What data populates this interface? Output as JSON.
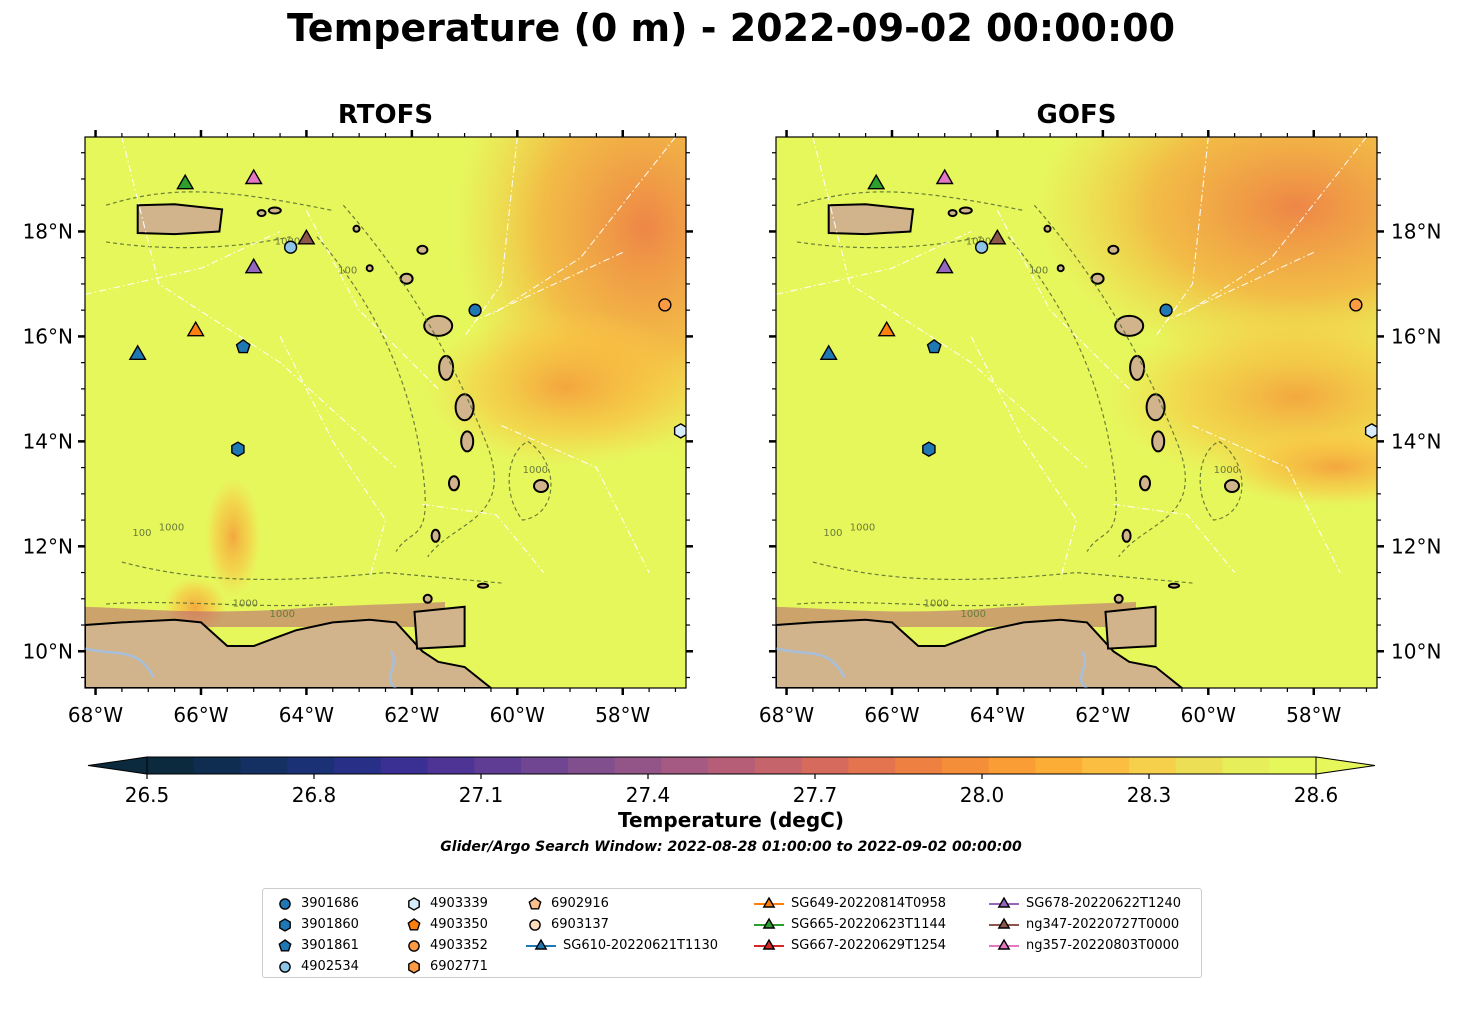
{
  "title": "Temperature (0 m) - 2022-09-02 00:00:00",
  "panels": [
    {
      "title": "RTOFS",
      "ylabel_side": "left"
    },
    {
      "title": "GOFS",
      "ylabel_side": "right"
    }
  ],
  "axes": {
    "x_ticks": [
      "68°W",
      "66°W",
      "64°W",
      "62°W",
      "60°W",
      "58°W"
    ],
    "x_tick_values": [
      -68,
      -66,
      -64,
      -62,
      -60,
      -58
    ],
    "y_ticks": [
      "10°N",
      "12°N",
      "14°N",
      "16°N",
      "18°N"
    ],
    "y_tick_values": [
      10,
      12,
      14,
      16,
      18
    ],
    "lon_range": [
      -68.2,
      -56.8
    ],
    "lat_range": [
      9.3,
      19.8
    ]
  },
  "colorbar": {
    "label": "Temperature (degC)",
    "ticks": [
      "26.5",
      "26.8",
      "27.1",
      "27.4",
      "27.7",
      "28.0",
      "28.3",
      "28.6"
    ],
    "tick_values": [
      26.5,
      26.8,
      27.1,
      27.4,
      27.7,
      28.0,
      28.3,
      28.6
    ],
    "range": [
      26.5,
      28.6
    ],
    "extend": "both",
    "colors": [
      "#0c2a3d",
      "#0f2d50",
      "#142f62",
      "#1b3175",
      "#282f86",
      "#3a2f92",
      "#4e3595",
      "#5f3d95",
      "#704692",
      "#814e8e",
      "#935488",
      "#a45a82",
      "#b65e78",
      "#c6646c",
      "#d66b5d",
      "#e3744f",
      "#ee8042",
      "#f58e39",
      "#f99d34",
      "#fbad36",
      "#fbbe40",
      "#f6d04b",
      "#ecdf55",
      "#e6ef5a",
      "#e6f75c"
    ]
  },
  "search_window": "Glider/Argo Search Window: 2022-08-28 01:00:00 to 2022-09-02 00:00:00",
  "colors": {
    "ocean_base": "#e6f75c",
    "land": "#d2b48c",
    "lake": "#a5bfdd"
  },
  "observations": [
    {
      "id": "3901686",
      "kind": "argo",
      "marker": "circle",
      "color": "#1f77b4",
      "lon": -60.8,
      "lat": 16.5
    },
    {
      "id": "3901860",
      "kind": "argo",
      "marker": "hexagon",
      "color": "#1f77b4",
      "lon": -65.3,
      "lat": 13.85
    },
    {
      "id": "3901861",
      "kind": "argo",
      "marker": "pentagon",
      "color": "#1f77b4",
      "lon": -65.2,
      "lat": 15.8
    },
    {
      "id": "4902534",
      "kind": "argo",
      "marker": "circle",
      "color": "#8ec4e8",
      "lon": -64.3,
      "lat": 17.7
    },
    {
      "id": "4903339",
      "kind": "argo",
      "marker": "hexagon",
      "color": "#d6ecfb",
      "lon": -56.9,
      "lat": 14.2
    },
    {
      "id": "4903350",
      "kind": "argo",
      "marker": "pentagon",
      "color": "#ff7f0e",
      "lon": null,
      "lat": null
    },
    {
      "id": "4903352",
      "kind": "argo",
      "marker": "circle",
      "color": "#fd9a44",
      "lon": -57.2,
      "lat": 16.6
    },
    {
      "id": "6902771",
      "kind": "argo",
      "marker": "hexagon",
      "color": "#fd9a44",
      "lon": null,
      "lat": null
    },
    {
      "id": "6902916",
      "kind": "argo",
      "marker": "pentagon",
      "color": "#fdc08a",
      "lon": null,
      "lat": null
    },
    {
      "id": "6903137",
      "kind": "argo",
      "marker": "circle",
      "color": "#fedcbc",
      "lon": null,
      "lat": null
    },
    {
      "id": "SG610-20220621T1130",
      "kind": "glider",
      "marker": "triangle",
      "color": "#1f77b4",
      "lon": -67.2,
      "lat": 15.65
    },
    {
      "id": "SG649-20220814T0958",
      "kind": "glider",
      "marker": "triangle",
      "color": "#ff7f0e",
      "lon": -66.1,
      "lat": 16.1
    },
    {
      "id": "SG665-20220623T1144",
      "kind": "glider",
      "marker": "triangle",
      "color": "#2ca02c",
      "lon": -66.3,
      "lat": 18.9
    },
    {
      "id": "SG667-20220629T1254",
      "kind": "glider",
      "marker": "triangle",
      "color": "#d62728",
      "lon": null,
      "lat": null
    },
    {
      "id": "SG678-20220622T1240",
      "kind": "glider",
      "marker": "triangle",
      "color": "#9467bd",
      "lon": -65.0,
      "lat": 17.3
    },
    {
      "id": "ng347-20220727T0000",
      "kind": "glider",
      "marker": "triangle",
      "color": "#8c564b",
      "lon": -64.0,
      "lat": 17.85
    },
    {
      "id": "ng357-20220803T0000",
      "kind": "glider",
      "marker": "triangle",
      "color": "#e377c2",
      "lon": -65.0,
      "lat": 19.0
    }
  ],
  "contour_labels": [
    "100",
    "1000"
  ]
}
